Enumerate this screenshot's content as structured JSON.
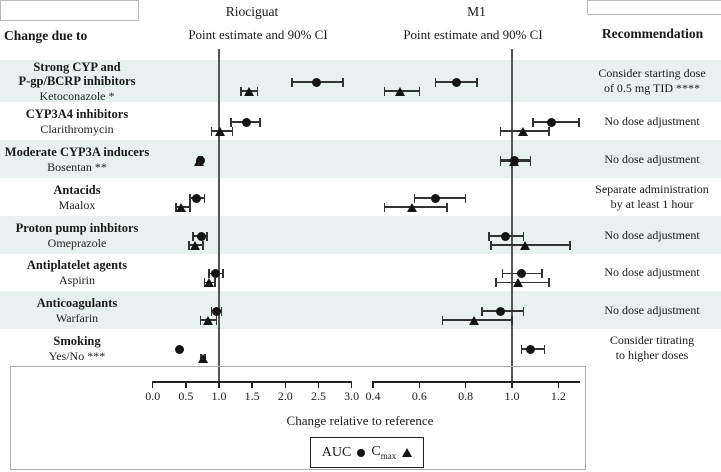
{
  "header": {
    "change_due_to": "Change due to",
    "recommendation": "Recommendation"
  },
  "panels": [
    {
      "title": "Riociguat",
      "subtitle": "Point estimate and 90% CI"
    },
    {
      "title": "M1",
      "subtitle": "Point estimate and 90% CI"
    }
  ],
  "legend": {
    "auc": "AUC",
    "cmax_base": "C",
    "cmax_sub": "max"
  },
  "colors": {
    "band": "#e8f1f0",
    "marker": "#141414",
    "errbar": "#333333",
    "refline": "#555555",
    "axis": "#222222",
    "text": "#1a1a1a",
    "cell_border": "#b9b9b9",
    "legend_border": "#222222"
  },
  "chart_data": {
    "type": "forest",
    "xlabel": "Change relative to reference",
    "ci_level": "90% CI",
    "panels": [
      {
        "name": "Riociguat",
        "ticks": [
          0.0,
          0.5,
          1.0,
          1.5,
          2.0,
          2.5,
          3.0
        ],
        "tick_labels": [
          "0.0",
          "0.5",
          "1.0",
          "1.5",
          "2.0",
          "2.5",
          "3.0"
        ],
        "reference": 1.0,
        "xlim": [
          0.0,
          3.0
        ]
      },
      {
        "name": "M1",
        "ticks": [
          0.4,
          0.6,
          0.8,
          1.0,
          1.2
        ],
        "tick_labels": [
          "0.4",
          "0.6",
          "0.8",
          "1.0",
          "1.2"
        ],
        "reference": 1.0,
        "xlim": [
          0.4,
          1.3
        ]
      }
    ],
    "series_legend": [
      {
        "name": "AUC",
        "marker": "circle"
      },
      {
        "name": "Cmax",
        "marker": "triangle"
      }
    ],
    "rows": [
      {
        "group_lines": [
          "Strong CYP and",
          "P-gp/BCRP inhibitors"
        ],
        "agent": "Ketoconazole *",
        "recommendation_lines": [
          "Consider starting dose",
          "of 0.5 mg TID ****"
        ],
        "shaded": true,
        "riociguat": {
          "auc": {
            "est": 2.47,
            "lo": 2.1,
            "hi": 2.87
          },
          "cmax": {
            "est": 1.46,
            "lo": 1.33,
            "hi": 1.58
          }
        },
        "m1": {
          "auc": {
            "est": 0.76,
            "lo": 0.67,
            "hi": 0.85
          },
          "cmax": {
            "est": 0.52,
            "lo": 0.45,
            "hi": 0.6
          }
        }
      },
      {
        "group_lines": [
          "CYP3A4 inhibitors"
        ],
        "agent": "Clarithromycin",
        "recommendation_lines": [
          "No dose adjustment"
        ],
        "shaded": false,
        "riociguat": {
          "auc": {
            "est": 1.41,
            "lo": 1.18,
            "hi": 1.62
          },
          "cmax": {
            "est": 1.03,
            "lo": 0.89,
            "hi": 1.2
          }
        },
        "m1": {
          "auc": {
            "est": 1.17,
            "lo": 1.09,
            "hi": 1.29
          },
          "cmax": {
            "est": 1.05,
            "lo": 0.95,
            "hi": 1.16
          }
        }
      },
      {
        "group_lines": [
          "Moderate CYP3A inducers"
        ],
        "agent": "Bosentan **",
        "recommendation_lines": [
          "No dose adjustment"
        ],
        "shaded": true,
        "overlap": true,
        "riociguat": {
          "auc": {
            "est": 0.72,
            "lo": 0.7,
            "hi": 0.74
          },
          "cmax": {
            "est": 0.71,
            "lo": 0.69,
            "hi": 0.73
          }
        },
        "m1": {
          "auc": {
            "est": 1.01,
            "lo": 0.95,
            "hi": 1.08
          },
          "cmax": {
            "est": 1.01,
            "lo": 0.95,
            "hi": 1.08
          }
        }
      },
      {
        "group_lines": [
          "Antacids"
        ],
        "agent": "Maalox",
        "recommendation_lines": [
          "Separate administration",
          "by at least 1 hour"
        ],
        "shaded": false,
        "riociguat": {
          "auc": {
            "est": 0.66,
            "lo": 0.56,
            "hi": 0.78
          },
          "cmax": {
            "est": 0.44,
            "lo": 0.35,
            "hi": 0.56
          }
        },
        "m1": {
          "auc": {
            "est": 0.67,
            "lo": 0.58,
            "hi": 0.8
          },
          "cmax": {
            "est": 0.57,
            "lo": 0.45,
            "hi": 0.72
          }
        }
      },
      {
        "group_lines": [
          "Proton pump inhbitors"
        ],
        "agent": "Omeprazole",
        "recommendation_lines": [
          "No dose adjustment"
        ],
        "shaded": true,
        "riociguat": {
          "auc": {
            "est": 0.74,
            "lo": 0.61,
            "hi": 0.82
          },
          "cmax": {
            "est": 0.65,
            "lo": 0.55,
            "hi": 0.76
          }
        },
        "m1": {
          "auc": {
            "est": 0.97,
            "lo": 0.9,
            "hi": 1.05
          },
          "cmax": {
            "est": 1.06,
            "lo": 0.91,
            "hi": 1.25
          }
        }
      },
      {
        "group_lines": [
          "Antiplatelet agents"
        ],
        "agent": "Aspirin",
        "recommendation_lines": [
          "No dose adjustment"
        ],
        "shaded": false,
        "riociguat": {
          "auc": {
            "est": 0.95,
            "lo": 0.85,
            "hi": 1.06
          },
          "cmax": {
            "est": 0.85,
            "lo": 0.78,
            "hi": 0.94
          }
        },
        "m1": {
          "auc": {
            "est": 1.04,
            "lo": 0.96,
            "hi": 1.13
          },
          "cmax": {
            "est": 1.03,
            "lo": 0.93,
            "hi": 1.16
          }
        }
      },
      {
        "group_lines": [
          "Anticoagulants"
        ],
        "agent": "Warfarin",
        "recommendation_lines": [
          "No dose adjustment"
        ],
        "shaded": true,
        "riociguat": {
          "auc": {
            "est": 0.96,
            "lo": 0.89,
            "hi": 1.04
          },
          "cmax": {
            "est": 0.84,
            "lo": 0.72,
            "hi": 0.96
          }
        },
        "m1": {
          "auc": {
            "est": 0.95,
            "lo": 0.87,
            "hi": 1.05
          },
          "cmax": {
            "est": 0.84,
            "lo": 0.7,
            "hi": 1.0
          }
        }
      },
      {
        "group_lines": [
          "Smoking"
        ],
        "agent": "Yes/No ***",
        "recommendation_lines": [
          "Consider titrating",
          "to higher doses"
        ],
        "shaded": false,
        "riociguat": {
          "auc": {
            "est": 0.4,
            "lo": null,
            "hi": null
          },
          "cmax": {
            "est": 0.76,
            "lo": 0.73,
            "hi": 0.79
          }
        },
        "m1": {
          "auc": {
            "est": 1.08,
            "lo": 1.04,
            "hi": 1.14
          },
          "cmax": null
        }
      }
    ]
  }
}
